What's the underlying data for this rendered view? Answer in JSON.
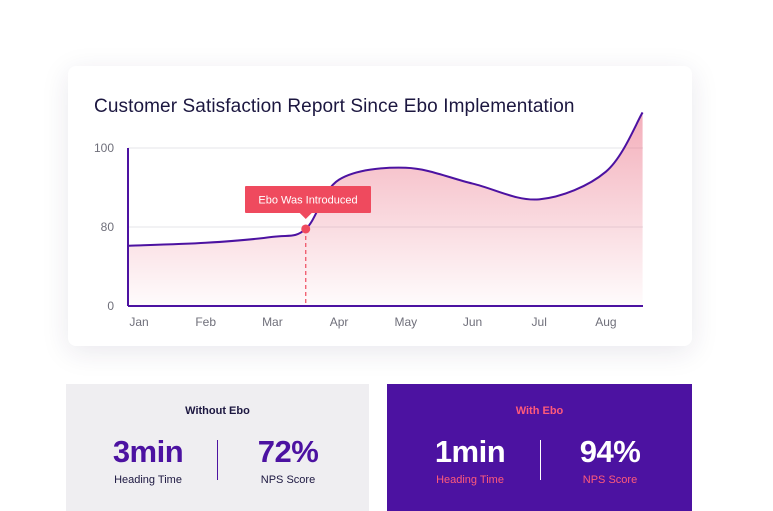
{
  "chart_data": {
    "type": "area",
    "title": "Customer Satisfaction Report Since Ebo Implementation",
    "categories": [
      "Jan",
      "Feb",
      "Mar",
      "Apr",
      "May",
      "Jun",
      "Jul",
      "Aug"
    ],
    "y_ticks": [
      {
        "label": "100",
        "value": 100
      },
      {
        "label": "80",
        "value": 80
      },
      {
        "label": "0",
        "value": 0
      }
    ],
    "grid": true,
    "series": [
      {
        "x": [
          0,
          1,
          2,
          2.5,
          3,
          4,
          5,
          6,
          7,
          7.55
        ],
        "values": [
          61,
          64,
          70,
          78,
          92,
          95,
          91,
          87,
          94,
          109
        ]
      }
    ],
    "annotation": {
      "label": "Ebo Was Introduced",
      "x": 2.5,
      "value": 78
    },
    "colors": {
      "line": "#4c12a1",
      "fill": "#e85d75",
      "marker": "#ef4a5e",
      "callout": "#ef4a5e",
      "grid": "#e6e6ea"
    }
  },
  "comparison": {
    "without": {
      "heading": "Without Ebo",
      "time_value": "3min",
      "time_label": "Heading Time",
      "nps_value": "72%",
      "nps_label": "NPS Score"
    },
    "with": {
      "heading": "With Ebo",
      "time_value": "1min",
      "time_label": "Heading Time",
      "nps_value": "94%",
      "nps_label": "NPS Score"
    }
  }
}
